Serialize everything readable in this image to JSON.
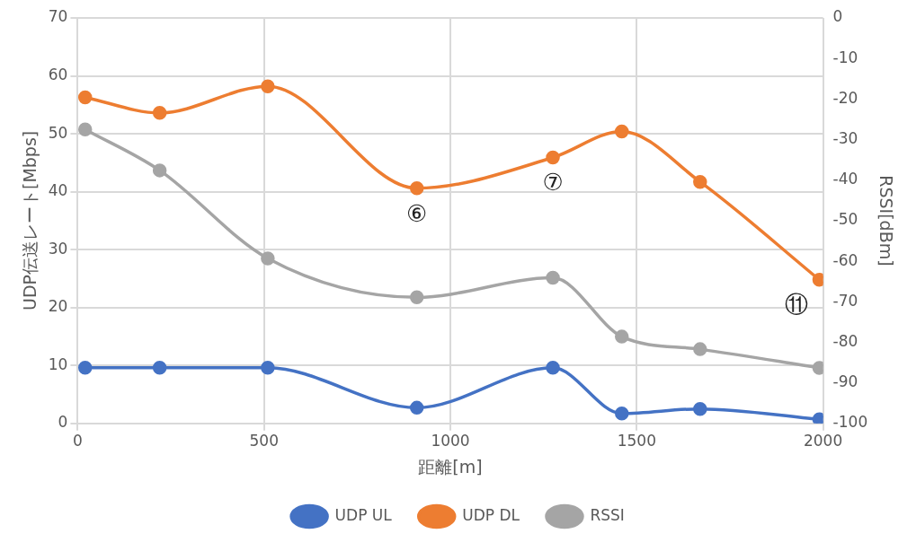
{
  "chart_data": {
    "type": "line",
    "xlabel": "距離[m]",
    "ylabel": "UDP伝送レート[Mbps]",
    "y2label": "RSSI[dBm]",
    "x": [
      20,
      220,
      510,
      910,
      1275,
      1460,
      1670,
      1990
    ],
    "series": [
      {
        "name": "UDP UL",
        "color": "#4472c4",
        "values": [
          9.6,
          9.6,
          9.6,
          2.7,
          9.6,
          1.7,
          2.5,
          0.7
        ]
      },
      {
        "name": "UDP DL",
        "color": "#ed7d31",
        "values": [
          56.3,
          53.6,
          58.2,
          40.6,
          45.9,
          50.4,
          41.7,
          24.8
        ]
      },
      {
        "name": "RSSI",
        "color": "#a5a5a5",
        "axis": "y2",
        "values": [
          -27.5,
          -37.6,
          -59.3,
          -68.9,
          -64.1,
          -78.6,
          -81.7,
          -86.3
        ]
      }
    ],
    "xlim": [
      0,
      2000
    ],
    "xticks": [
      0,
      500,
      1000,
      1500,
      2000
    ],
    "ylim": [
      0,
      70
    ],
    "yticks": [
      0,
      10,
      20,
      30,
      40,
      50,
      60,
      70
    ],
    "y2lim": [
      -100,
      0
    ],
    "y2ticks": [
      -100,
      -90,
      -80,
      -70,
      -60,
      -50,
      -40,
      -30,
      -20,
      -10,
      0
    ],
    "annotations": [
      {
        "text": "⑥",
        "x": 910,
        "y": 40.6
      },
      {
        "text": "⑦",
        "x": 1275,
        "y": 45.9
      },
      {
        "text": "⑪",
        "x": 1990,
        "y": 24.8
      }
    ],
    "grid": true,
    "legend": "bottom",
    "marker": "circle",
    "line_style": "solid"
  }
}
